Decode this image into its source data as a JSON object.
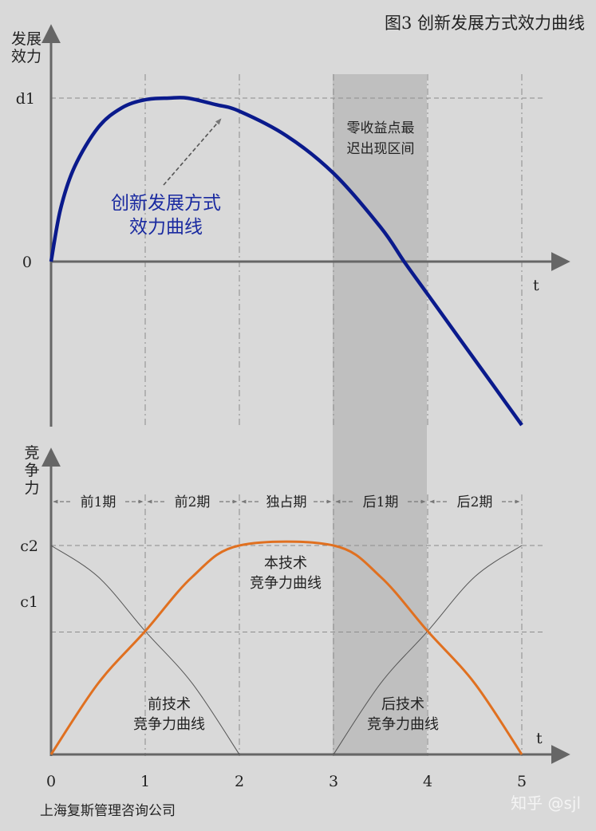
{
  "title": "图3  创新发展方式效力曲线",
  "source": "上海复斯管理咨询公司",
  "watermark": "知乎 @sjl",
  "colors": {
    "background": "#d9d9d9",
    "band": "#bfbfbf",
    "efficacy": "#0a1a8c",
    "competitiveness": "#e07020",
    "neighbor": "#555555",
    "grid": "#8c8c8c",
    "axis": "#666666"
  },
  "chart_data": [
    {
      "type": "line",
      "ylabel": "发展效力",
      "xlabel": "t",
      "y_ticks": [
        {
          "label": "d1",
          "value": 1
        },
        {
          "label": "0",
          "value": 0
        }
      ],
      "xlim": [
        0,
        5.5
      ],
      "ylim": [
        -1.0,
        1.3
      ],
      "series": [
        {
          "name": "创新发展方式效力曲线",
          "x": [
            0,
            0.1,
            0.25,
            0.5,
            0.75,
            1.0,
            1.25,
            1.45,
            1.75,
            2.0,
            2.5,
            3.0,
            3.5,
            3.75,
            4.0,
            4.5,
            5.0
          ],
          "y": [
            0,
            0.32,
            0.58,
            0.82,
            0.94,
            0.99,
            1.0,
            1.0,
            0.96,
            0.92,
            0.77,
            0.54,
            0.21,
            0.0,
            -0.2,
            -0.6,
            -1.0
          ]
        }
      ],
      "shaded_band": {
        "x": [
          3,
          4
        ],
        "label_line1": "零收益点最",
        "label_line2": "迟出现区间"
      },
      "annotation": {
        "line1": "创新发展方式",
        "line2": "效力曲线"
      }
    },
    {
      "type": "line",
      "ylabel": "竞争力",
      "xlabel": "t",
      "x_ticks": [
        "0",
        "1",
        "2",
        "3",
        "4",
        "5"
      ],
      "y_ticks": [
        {
          "label": "c2",
          "value": 1
        },
        {
          "label": "c1",
          "value": 0.586
        }
      ],
      "xlim": [
        0,
        5.5
      ],
      "ylim": [
        0,
        1.5
      ],
      "periods": [
        "前1期",
        "前2期",
        "独占期",
        "后1期",
        "后2期"
      ],
      "series": [
        {
          "name": "本技术竞争力曲线",
          "x": [
            0,
            0.5,
            1.0,
            1.5,
            2.0,
            3.0,
            3.5,
            4.0,
            4.5,
            5.0
          ],
          "y": [
            0,
            0.34,
            0.59,
            0.85,
            1.0,
            1.0,
            0.85,
            0.59,
            0.34,
            0
          ]
        },
        {
          "name": "前技术竞争力曲线",
          "x": [
            0,
            0.5,
            1.0,
            1.5,
            2.0
          ],
          "y": [
            1.0,
            0.85,
            0.59,
            0.34,
            0
          ]
        },
        {
          "name": "后技术竞争力曲线",
          "x": [
            3.0,
            3.5,
            4.0,
            4.5,
            5.0
          ],
          "y": [
            0,
            0.34,
            0.59,
            0.85,
            1.0
          ]
        }
      ],
      "labels": {
        "this_line1": "本技术",
        "this_line2": "竞争力曲线",
        "prev_line1": "前技术",
        "prev_line2": "竞争力曲线",
        "next_line1": "后技术",
        "next_line2": "竞争力曲线"
      }
    }
  ]
}
